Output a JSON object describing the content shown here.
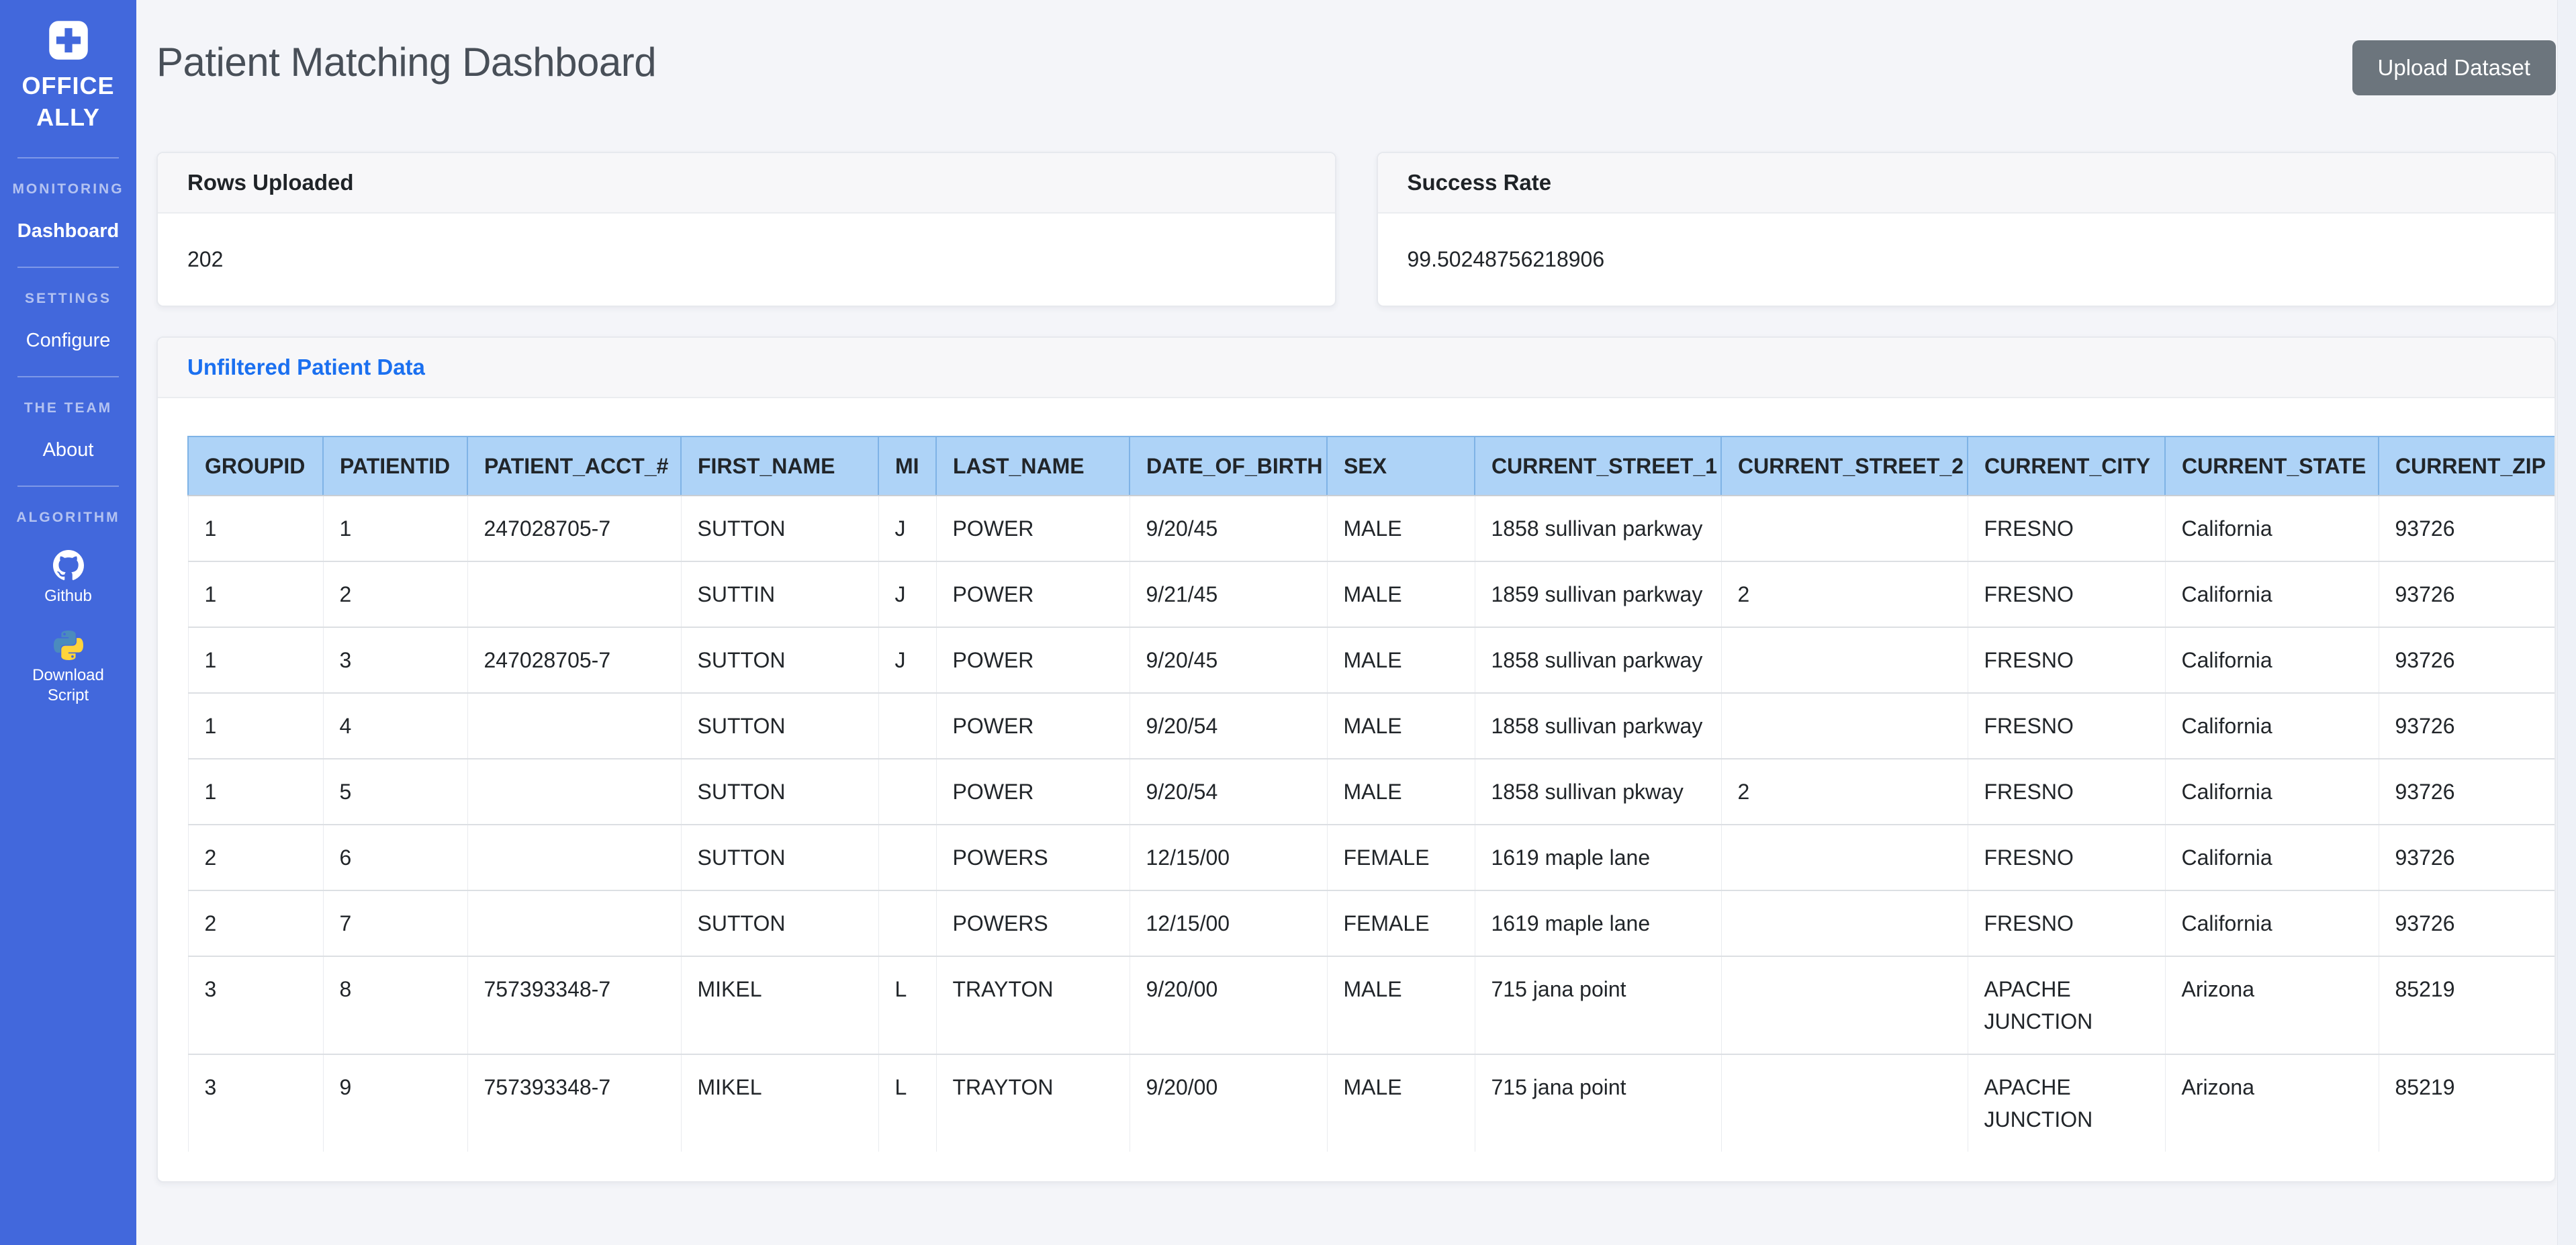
{
  "sidebar": {
    "brand": {
      "line1": "OFFICE",
      "line2": "ALLY"
    },
    "sections": [
      {
        "label": "MONITORING",
        "items": [
          {
            "label": "Dashboard",
            "active": true
          }
        ]
      },
      {
        "label": "SETTINGS",
        "items": [
          {
            "label": "Configure"
          }
        ]
      },
      {
        "label": "THE TEAM",
        "items": [
          {
            "label": "About"
          }
        ]
      },
      {
        "label": "ALGORITHM",
        "items": [
          {
            "label": "Github",
            "icon": "github-icon"
          },
          {
            "label": "Download Script",
            "icon": "python-icon"
          }
        ]
      }
    ]
  },
  "header": {
    "title": "Patient Matching Dashboard",
    "upload_button_label": "Upload Dataset"
  },
  "stats": [
    {
      "title": "Rows Uploaded",
      "value": "202"
    },
    {
      "title": "Success Rate",
      "value": "99.50248756218906"
    }
  ],
  "table_card": {
    "title": "Unfiltered Patient Data"
  },
  "table": {
    "columns": [
      "GROUPID",
      "PATIENTID",
      "PATIENT_ACCT_#",
      "FIRST_NAME",
      "MI",
      "LAST_NAME",
      "DATE_OF_BIRTH",
      "SEX",
      "CURRENT_STREET_1",
      "CURRENT_STREET_2",
      "CURRENT_CITY",
      "CURRENT_STATE",
      "CURRENT_ZIP"
    ],
    "rows": [
      [
        "1",
        "1",
        "247028705-7",
        "SUTTON",
        "J",
        "POWER",
        "9/20/45",
        "MALE",
        "1858 sullivan parkway",
        "",
        "FRESNO",
        "California",
        "93726"
      ],
      [
        "1",
        "2",
        "",
        "SUTTIN",
        "J",
        "POWER",
        "9/21/45",
        "MALE",
        "1859 sullivan parkway",
        "2",
        "FRESNO",
        "California",
        "93726"
      ],
      [
        "1",
        "3",
        "247028705-7",
        "SUTTON",
        "J",
        "POWER",
        "9/20/45",
        "MALE",
        "1858 sullivan parkway",
        "",
        "FRESNO",
        "California",
        "93726"
      ],
      [
        "1",
        "4",
        "",
        "SUTTON",
        "",
        "POWER",
        "9/20/54",
        "MALE",
        "1858 sullivan parkway",
        "",
        "FRESNO",
        "California",
        "93726"
      ],
      [
        "1",
        "5",
        "",
        "SUTTON",
        "",
        "POWER",
        "9/20/54",
        "MALE",
        "1858 sullivan pkway",
        "2",
        "FRESNO",
        "California",
        "93726"
      ],
      [
        "2",
        "6",
        "",
        "SUTTON",
        "",
        "POWERS",
        "12/15/00",
        "FEMALE",
        "1619 maple lane",
        "",
        "FRESNO",
        "California",
        "93726"
      ],
      [
        "2",
        "7",
        "",
        "SUTTON",
        "",
        "POWERS",
        "12/15/00",
        "FEMALE",
        "1619 maple lane",
        "",
        "FRESNO",
        "California",
        "93726"
      ],
      [
        "3",
        "8",
        "757393348-7",
        "MIKEL",
        "L",
        "TRAYTON",
        "9/20/00",
        "MALE",
        "715 jana point",
        "",
        "APACHE JUNCTION",
        "Arizona",
        "85219"
      ],
      [
        "3",
        "9",
        "757393348-7",
        "MIKEL",
        "L",
        "TRAYTON",
        "9/20/00",
        "MALE",
        "715 jana point",
        "",
        "APACHE JUNCTION",
        "Arizona",
        "85219"
      ]
    ]
  },
  "colors": {
    "sidebar_bg": "#4268dc",
    "accent_blue": "#1b70f0",
    "table_header_bg": "#aed3f7",
    "button_bg": "#6c757d",
    "page_bg": "#f4f5f9",
    "card_header_bg": "#f7f7f9",
    "text_dark": "#212529",
    "title_gray": "#484f58",
    "python_blue": "#4b8bbe",
    "python_yellow": "#ffd43b"
  }
}
